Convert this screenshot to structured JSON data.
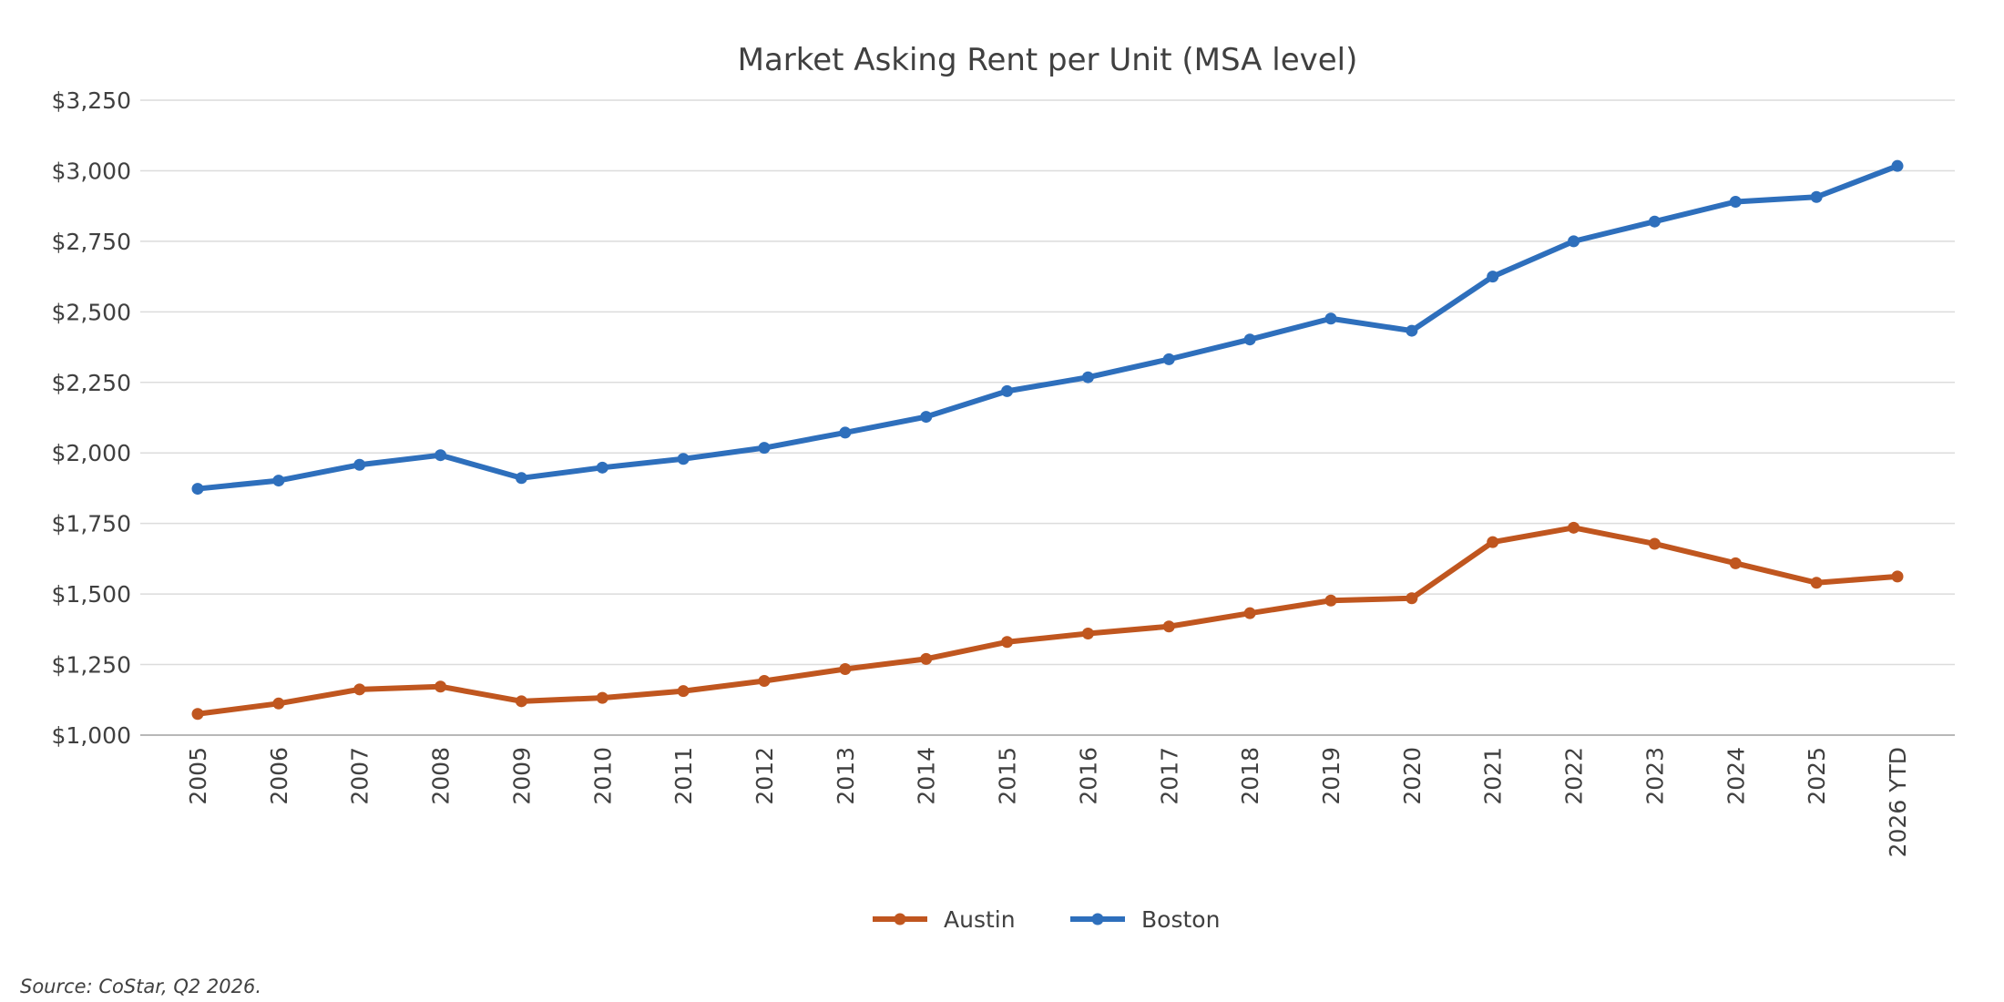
{
  "chart_data": {
    "type": "line",
    "title": "Market Asking Rent per Unit (MSA level)",
    "xlabel": "",
    "ylabel": "",
    "categories": [
      "2005",
      "2006",
      "2007",
      "2008",
      "2009",
      "2010",
      "2011",
      "2012",
      "2013",
      "2014",
      "2015",
      "2016",
      "2017",
      "2018",
      "2019",
      "2020",
      "2021",
      "2022",
      "2023",
      "2024",
      "2025",
      "2026 YTD"
    ],
    "ylim": [
      1000,
      3250
    ],
    "yticks": [
      1000,
      1250,
      1500,
      1750,
      2000,
      2250,
      2500,
      2750,
      3000,
      3250
    ],
    "ytick_labels": [
      "$1,000",
      "$1,250",
      "$1,500",
      "$1,750",
      "$2,000",
      "$2,250",
      "$2,500",
      "$2,750",
      "$3,000",
      "$3,250"
    ],
    "grid": true,
    "legend_position": "bottom-center",
    "series": [
      {
        "name": "Austin",
        "color": "#c0561f",
        "values": [
          1075,
          1112,
          1162,
          1172,
          1120,
          1132,
          1156,
          1192,
          1234,
          1270,
          1330,
          1360,
          1385,
          1432,
          1477,
          1485,
          1684,
          1735,
          1678,
          1609,
          1540,
          1562
        ]
      },
      {
        "name": "Boston",
        "color": "#2e6fbc",
        "values": [
          1873,
          1902,
          1958,
          1992,
          1911,
          1948,
          1979,
          2018,
          2072,
          2128,
          2219,
          2268,
          2332,
          2402,
          2476,
          2433,
          2625,
          2750,
          2820,
          2890,
          2907,
          3017
        ]
      }
    ]
  },
  "source_note": "Source: CoStar, Q2 2026."
}
